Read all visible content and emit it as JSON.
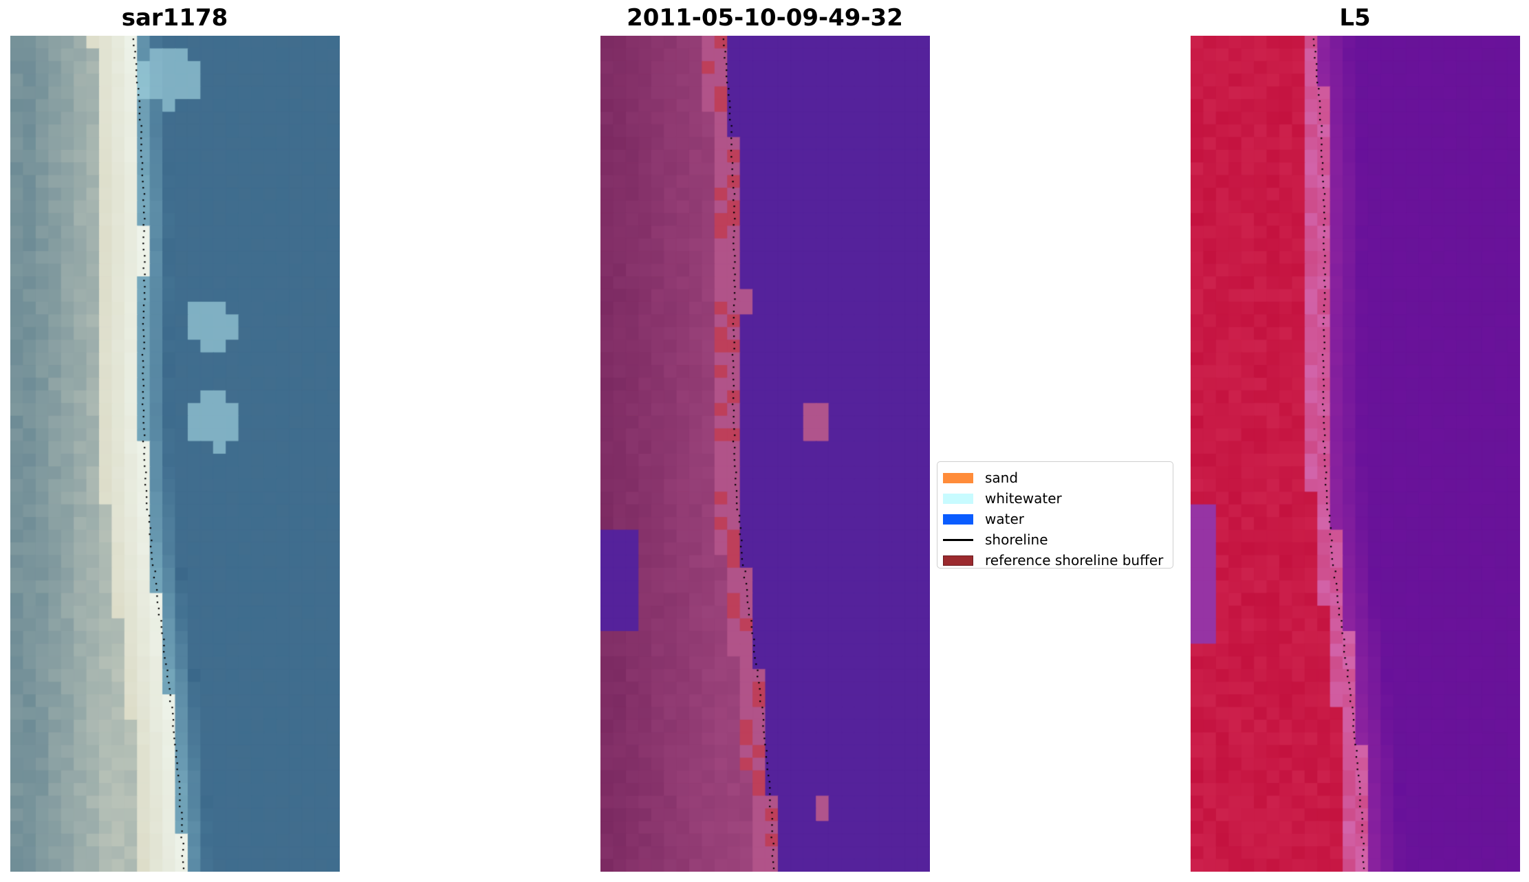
{
  "panels": [
    {
      "id": "rgb",
      "title": "sar1178"
    },
    {
      "id": "class",
      "title": "2011-05-10-09-49-32"
    },
    {
      "id": "ndwi",
      "title": "L5"
    }
  ],
  "legend": {
    "items": [
      {
        "label": "sand",
        "kind": "patch",
        "color": "#ff8c3a"
      },
      {
        "label": "whitewater",
        "kind": "patch",
        "color": "#c8fbff"
      },
      {
        "label": "water",
        "kind": "patch",
        "color": "#0a5cff"
      },
      {
        "label": "shoreline",
        "kind": "line",
        "color": "#000000"
      },
      {
        "label": "reference shoreline buffer",
        "kind": "patch",
        "color": "#9b2a2e"
      }
    ]
  },
  "colors": {
    "rgb_water": "#3f6d8e",
    "rgb_sand": "#dcdcc8",
    "class_water": "#55229b",
    "class_land": "#7c2a62",
    "class_sand_overlay": "#c23a4e",
    "ndwi_land": "#c4123f",
    "ndwi_water": "#6a129a",
    "shoreline_dots": "#000000"
  }
}
